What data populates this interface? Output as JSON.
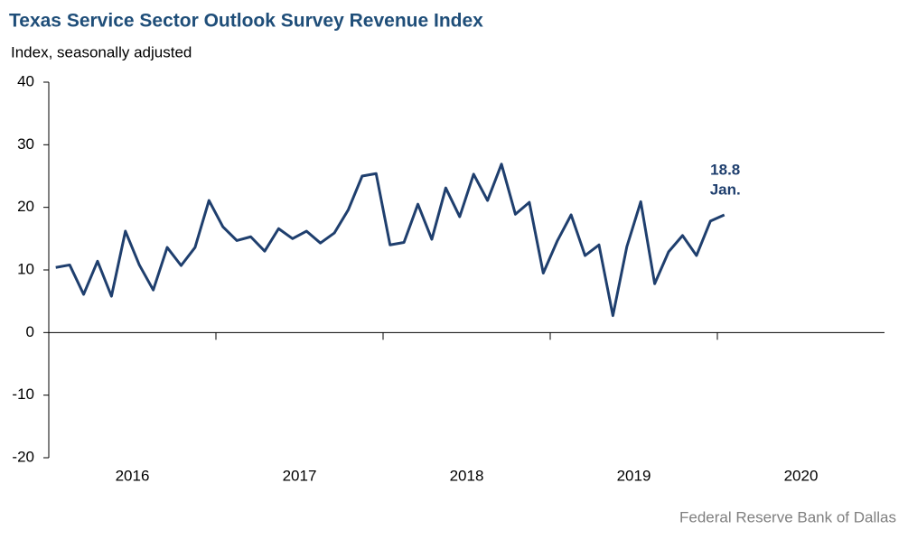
{
  "chart_data": {
    "type": "line",
    "title": "Texas Service Sector Outlook Survey Revenue Index",
    "y_label": "Index, seasonally adjusted",
    "source": "Federal Reserve Bank of Dallas",
    "annotation": "Jan.",
    "categories": [
      null,
      null,
      null,
      null,
      null,
      null,
      null,
      null,
      null,
      null,
      null,
      null,
      null,
      null,
      null,
      null,
      null,
      null,
      null,
      null,
      null,
      null,
      null,
      null,
      null,
      null,
      null,
      null,
      null,
      null,
      null,
      null,
      null,
      null,
      null,
      null,
      null,
      null,
      null,
      null,
      null,
      null,
      null,
      null,
      null,
      null,
      null,
      null,
      null
    ],
    "year_labels": [
      "2016",
      "2017",
      "2018",
      "2019",
      "2020"
    ],
    "series": [
      {
        "name": "Revenue",
        "color": "#1f3f6e",
        "values": [
          10.4,
          10.8,
          6.1,
          11.4,
          5.8,
          16.2,
          10.8,
          6.8,
          13.6,
          10.7,
          13.6,
          21.1,
          16.9,
          14.7,
          15.3,
          13.0,
          16.6,
          15.0,
          16.2,
          14.3,
          15.9,
          19.6,
          25.0,
          25.4,
          14.0,
          14.4,
          20.5,
          14.9,
          23.1,
          18.5,
          25.3,
          21.1,
          26.9,
          18.9,
          20.8,
          9.5,
          14.6,
          18.8,
          12.3,
          14.0,
          2.7,
          13.7,
          20.9,
          7.8,
          12.9,
          15.5,
          12.3,
          17.8,
          18.8
        ]
      }
    ],
    "ylim": [
      -20,
      40
    ],
    "yticks": [
      -20,
      -10,
      0,
      10,
      20,
      30,
      40
    ]
  }
}
